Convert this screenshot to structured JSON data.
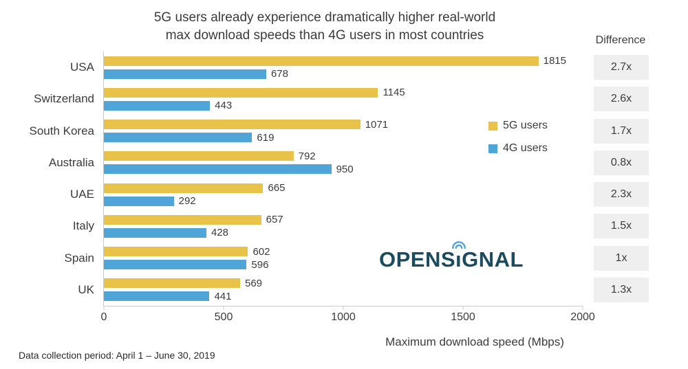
{
  "title": {
    "line1": "5G users already experience dramatically higher real-world",
    "line2": "max download speeds than 4G users in most countries"
  },
  "difference": {
    "header": "Difference",
    "values": [
      "2.7x",
      "2.6x",
      "1.7x",
      "0.8x",
      "2.3x",
      "1.5x",
      "1x",
      "1.3x"
    ]
  },
  "legend": {
    "items": [
      {
        "label": "5G users",
        "color": "#E9C24A"
      },
      {
        "label": "4G users",
        "color": "#4FA5D8"
      }
    ]
  },
  "axis": {
    "xlabel": "Maximum download speed  (Mbps)"
  },
  "logo": {
    "pre": "OPENS",
    "i_char": "ı",
    "post": "GNAL",
    "full": "OPENSIGNAL"
  },
  "footer": {
    "text": "Data collection period: April 1 – June 30, 2019"
  },
  "colors": {
    "five_g": "#E9C24A",
    "four_g": "#4FA5D8",
    "diff_bg": "#EFEFEF",
    "logo": "#1B4B5F",
    "axis_line": "#C9C9C9",
    "text": "#3B3B3B"
  },
  "chart_data": {
    "type": "bar",
    "orientation": "horizontal",
    "title": "5G users already experience dramatically higher real-world max download speeds than 4G users in most countries",
    "categories": [
      "USA",
      "Switzerland",
      "South Korea",
      "Australia",
      "UAE",
      "Italy",
      "Spain",
      "UK"
    ],
    "series": [
      {
        "name": "5G users",
        "color": "#E9C24A",
        "values": [
          1815,
          1145,
          1071,
          792,
          665,
          657,
          602,
          569
        ]
      },
      {
        "name": "4G users",
        "color": "#4FA5D8",
        "values": [
          678,
          443,
          619,
          950,
          292,
          428,
          596,
          441
        ]
      }
    ],
    "difference": [
      "2.7x",
      "2.6x",
      "1.7x",
      "0.8x",
      "2.3x",
      "1.5x",
      "1x",
      "1.3x"
    ],
    "xlabel": "Maximum download speed  (Mbps)",
    "xlim": [
      0,
      2000
    ],
    "xticks": [
      0,
      500,
      1000,
      1500,
      2000
    ],
    "grid": false,
    "legend_position": "right-middle",
    "source_note": "Data collection period: April 1 – June 30, 2019"
  }
}
